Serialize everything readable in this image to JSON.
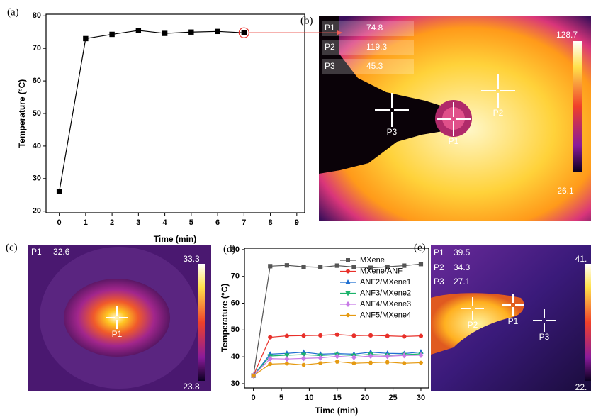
{
  "chart_data": [
    {
      "type": "line",
      "panel_label": "(a)",
      "x_label": "Time (min)",
      "y_label": "Temperature (°C)",
      "x": [
        0,
        1,
        2,
        3,
        4,
        5,
        6,
        7
      ],
      "values": [
        26,
        73,
        74.3,
        75.5,
        74.6,
        75,
        75.2,
        74.8
      ],
      "color": "#000000",
      "marker": "square",
      "xlim": [
        -0.5,
        9.3
      ],
      "xticks": [
        0,
        1,
        2,
        3,
        4,
        5,
        6,
        7,
        8,
        9
      ],
      "ylim": [
        19.5,
        80.5
      ],
      "yticks": [
        20,
        30,
        40,
        50,
        60,
        70,
        80
      ],
      "grid": false
    },
    {
      "type": "line",
      "panel_label": "(d)",
      "x_label": "Time (min)",
      "y_label": "Temperature (°C)",
      "x": [
        0,
        3,
        6,
        9,
        12,
        15,
        18,
        21,
        24,
        27,
        30
      ],
      "series": [
        {
          "name": "MXene",
          "color": "#555555",
          "marker": "square",
          "values": [
            33,
            73.8,
            74.1,
            73.6,
            73.4,
            74,
            73.5,
            73.2,
            73.6,
            74,
            74.6
          ]
        },
        {
          "name": "MXene/ANF",
          "color": "#e8302a",
          "marker": "circle",
          "values": [
            33,
            47.3,
            47.8,
            47.9,
            48,
            48.3,
            47.9,
            48,
            47.8,
            47.6,
            47.8
          ]
        },
        {
          "name": "ANF2/MXene1",
          "color": "#1f6fd1",
          "marker": "triangle",
          "values": [
            33,
            41,
            41.3,
            41.7,
            41,
            41.2,
            41,
            41.7,
            41.3,
            41.2,
            41.8
          ]
        },
        {
          "name": "ANF3/MXene2",
          "color": "#1bb36b",
          "marker": "down-triangle",
          "values": [
            33,
            40.3,
            40.6,
            40.8,
            40.5,
            40.8,
            40.5,
            40.9,
            40.6,
            40.8,
            41.1
          ]
        },
        {
          "name": "ANF4/MXene3",
          "color": "#c77ae6",
          "marker": "diamond",
          "values": [
            33,
            39.3,
            39.2,
            39.4,
            39.6,
            40.2,
            39.8,
            40.3,
            40.2,
            40.5,
            40.6
          ]
        },
        {
          "name": "ANF5/MXene4",
          "color": "#e59a12",
          "marker": "hexagon",
          "values": [
            33,
            37.3,
            37.5,
            37,
            37.6,
            38.2,
            37.6,
            37.8,
            38,
            37.6,
            37.8
          ]
        }
      ],
      "xlim": [
        -1.6,
        31.4
      ],
      "xticks": [
        0,
        5,
        10,
        15,
        20,
        25,
        30
      ],
      "ylim": [
        28.4,
        80.5
      ],
      "yticks": [
        30,
        40,
        50,
        60,
        70,
        80
      ],
      "grid": false,
      "legend": "upper right"
    }
  ],
  "thermal_images": [
    {
      "panel_label": "(b)",
      "readouts": [
        {
          "label": "P1",
          "value": "74.8"
        },
        {
          "label": "P2",
          "value": "119.3"
        },
        {
          "label": "P3",
          "value": "45.3"
        }
      ],
      "scale_max": "128.7",
      "scale_min": "26.1",
      "markers": [
        "P3",
        "P1",
        "P2"
      ]
    },
    {
      "panel_label": "(c)",
      "readouts": [
        {
          "label": "P1",
          "value": "32.6"
        }
      ],
      "scale_max": "33.3",
      "scale_min": "23.8",
      "markers": [
        "P1"
      ]
    },
    {
      "panel_label": "(e)",
      "readouts": [
        {
          "label": "P1",
          "value": "39.5"
        },
        {
          "label": "P2",
          "value": "34.3"
        },
        {
          "label": "P3",
          "value": "27.1"
        }
      ],
      "scale_max": "41.",
      "scale_min": "22.",
      "markers": [
        "P2",
        "P1",
        "P3"
      ]
    }
  ]
}
